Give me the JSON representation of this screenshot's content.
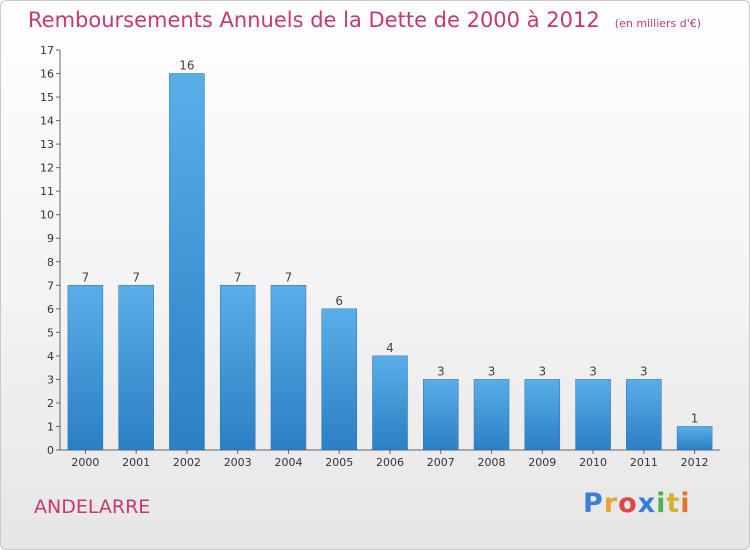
{
  "header": {
    "title": "Remboursements Annuels de la Dette de 2000 à 2012",
    "subtitle": "(en milliers d'€)"
  },
  "footer": {
    "town": "ANDELARRE",
    "logo_letters": [
      "P",
      "r",
      "o",
      "x",
      "i",
      "t",
      "i"
    ]
  },
  "colors": {
    "title": "#c8386f",
    "bar_light": "#5aaee8",
    "bar_dark": "#2b7fc4",
    "logo": [
      "#3b7dd8",
      "#e8a531",
      "#e04646",
      "#3b7dd8",
      "#4fb24c",
      "#d2b52f",
      "#e8742a"
    ]
  },
  "chart_data": {
    "type": "bar",
    "title": "Remboursements Annuels de la Dette de 2000 à 2012",
    "subtitle": "(en milliers d'€)",
    "categories": [
      "2000",
      "2001",
      "2002",
      "2003",
      "2004",
      "2005",
      "2006",
      "2007",
      "2008",
      "2009",
      "2010",
      "2011",
      "2012"
    ],
    "values": [
      7,
      7,
      16,
      7,
      7,
      6,
      4,
      3,
      3,
      3,
      3,
      3,
      1
    ],
    "ylim": [
      0,
      17
    ],
    "yticks": [
      0,
      1,
      2,
      3,
      4,
      5,
      6,
      7,
      8,
      9,
      10,
      11,
      12,
      13,
      14,
      15,
      16,
      17
    ],
    "xlabel": "",
    "ylabel": "",
    "grid": false,
    "legend": "none"
  }
}
